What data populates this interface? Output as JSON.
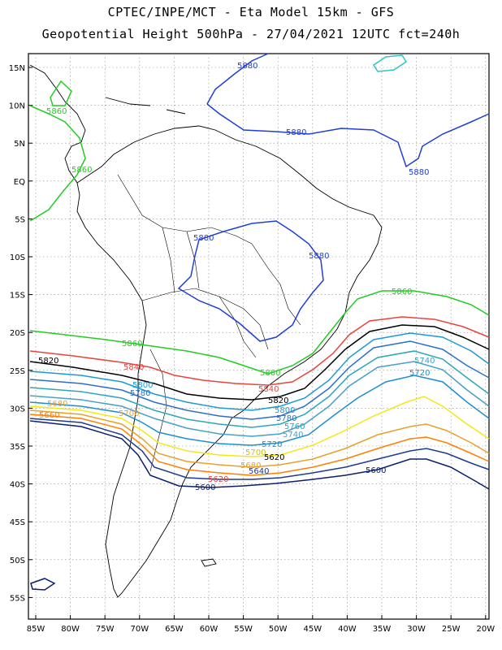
{
  "header": {
    "title_line1": "CPTEC/INPE/MCT -  Eta Model 15km - GFS",
    "title_line2": "Geopotential Height 500hPa - 27/04/2021 12UTC fct=240h"
  },
  "map": {
    "lat_labels": [
      "15N",
      "10N",
      "5N",
      "EQ",
      "5S",
      "10S",
      "15S",
      "20S",
      "25S",
      "30S",
      "35S",
      "40S",
      "45S",
      "50S",
      "55S"
    ],
    "lon_labels": [
      "85W",
      "80W",
      "75W",
      "70W",
      "65W",
      "60W",
      "55W",
      "50W",
      "45W",
      "40W",
      "35W",
      "30W",
      "25W",
      "20W"
    ],
    "grid": "dotted",
    "colors": {
      "5880": "#1f3fd8",
      "5860": "#22cc22",
      "5840": "#e8453c",
      "5820": "#000000",
      "5800": "#1c9ad6",
      "5780": "#2d6fc7",
      "5760": "#2aa7b8",
      "5740": "#46a0c8",
      "5720": "#1d8fcf",
      "5700": "#f4e812",
      "5680": "#e8a02a",
      "5660": "#ff7f00",
      "5640": "#1d3b8f",
      "5600": "#0b1f6b",
      "contour_extra": "#2ec4c4"
    }
  },
  "contour_labels": [
    {
      "text": "5880",
      "key": "5880"
    },
    {
      "text": "5880",
      "key": "5880"
    },
    {
      "text": "5880",
      "key": "5880"
    },
    {
      "text": "5880",
      "key": "5880"
    },
    {
      "text": "5880",
      "key": "5880"
    },
    {
      "text": "5860",
      "key": "5860"
    },
    {
      "text": "5860",
      "key": "5860"
    },
    {
      "text": "5860",
      "key": "5860"
    },
    {
      "text": "5860",
      "key": "5860"
    },
    {
      "text": "5860",
      "key": "5860"
    },
    {
      "text": "5840",
      "key": "5840"
    },
    {
      "text": "5840",
      "key": "5840"
    },
    {
      "text": "5820",
      "key": "5820"
    },
    {
      "text": "5820",
      "key": "5820"
    },
    {
      "text": "5800",
      "key": "5800"
    },
    {
      "text": "5800",
      "key": "5800"
    },
    {
      "text": "5780",
      "key": "5780"
    },
    {
      "text": "5780",
      "key": "5780"
    },
    {
      "text": "5760",
      "key": "5760"
    },
    {
      "text": "5740",
      "key": "5740"
    },
    {
      "text": "5740",
      "key": "5740"
    },
    {
      "text": "5720",
      "key": "5720"
    },
    {
      "text": "5720",
      "key": "5720"
    },
    {
      "text": "5700",
      "key": "5700"
    },
    {
      "text": "5700",
      "key": "5700"
    },
    {
      "text": "5680",
      "key": "5680"
    },
    {
      "text": "5680",
      "key": "5680"
    },
    {
      "text": "5660",
      "key": "5660"
    },
    {
      "text": "5640",
      "key": "5640"
    },
    {
      "text": "5620",
      "key": "5840"
    },
    {
      "text": "5620",
      "key": "5820"
    },
    {
      "text": "5600",
      "key": "5600"
    },
    {
      "text": "5600",
      "key": "5600"
    }
  ]
}
